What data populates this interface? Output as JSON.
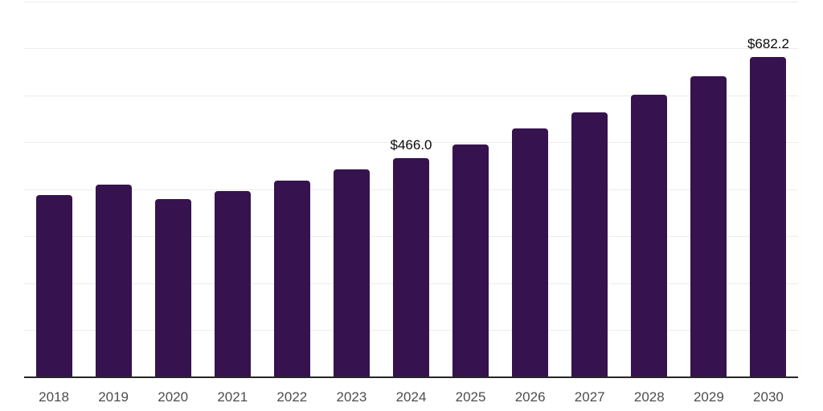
{
  "chart_data": {
    "type": "bar",
    "title": "",
    "xlabel": "",
    "ylabel": "",
    "categories": [
      "2018",
      "2019",
      "2020",
      "2021",
      "2022",
      "2023",
      "2024",
      "2025",
      "2026",
      "2027",
      "2028",
      "2029",
      "2030"
    ],
    "values": [
      388.3,
      410.7,
      380.0,
      397.2,
      418.2,
      442.4,
      466.0,
      496.6,
      529.2,
      563.9,
      600.9,
      640.3,
      682.2
    ],
    "data_labels": {
      "2024": "$466.0",
      "2030": "$682.2"
    },
    "ylim": [
      0,
      800
    ],
    "grid_step": 100,
    "grid": true,
    "legend": false,
    "y_axis_tick_labels_visible": false
  },
  "style": {
    "bar_color": "#36124F",
    "grid_color": "#ECECEC",
    "axis_color": "#262626",
    "tick_label_color": "#4D4D4D",
    "value_label_color": "#0A0A0A",
    "background": "#FFFFFF"
  }
}
